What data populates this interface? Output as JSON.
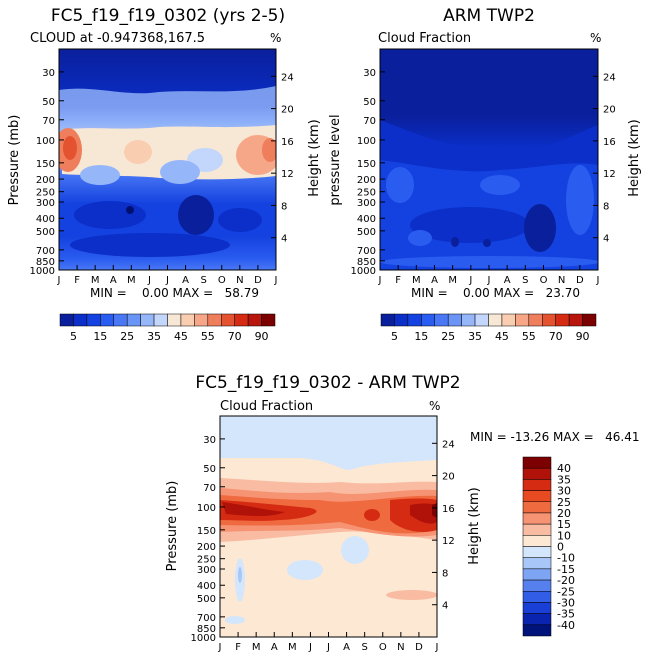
{
  "chart_data": [
    {
      "type": "heatmap",
      "title": "FC5_f19_f19_0302 (yrs 2-5)",
      "subtitle": "CLOUD at -0.947368,167.5",
      "unit": "%",
      "ylabel_left": "Pressure (mb)",
      "ylabel_right": "Height (km)",
      "stats": "MIN =    0.00 MAX =   58.79",
      "min": 0.0,
      "max": 58.79,
      "field": "model"
    },
    {
      "type": "heatmap",
      "title": "ARM TWP2",
      "subtitle": "Cloud Fraction",
      "unit": "%",
      "ylabel_left": "pressure  level",
      "ylabel_right": "Height (km)",
      "stats": "MIN =    0.00 MAX =   23.70",
      "min": 0.0,
      "max": 23.7,
      "field": "obs"
    },
    {
      "type": "heatmap",
      "title": "FC5_f19_f19_0302 - ARM TWP2",
      "subtitle": "Cloud Fraction",
      "unit": "%",
      "ylabel_left": "Pressure (mb)",
      "ylabel_right": "Height (km)",
      "stats": "MIN = -13.26 MAX =   46.41",
      "min": -13.26,
      "max": 46.41,
      "field": "diff"
    }
  ],
  "months": [
    "J",
    "F",
    "M",
    "A",
    "M",
    "J",
    "J",
    "A",
    "S",
    "O",
    "N",
    "D",
    "J"
  ],
  "pressure_ticks": [
    30,
    50,
    70,
    100,
    150,
    200,
    250,
    300,
    400,
    500,
    700,
    850,
    1000
  ],
  "pressure_range": [
    20,
    1000
  ],
  "height_ticks": [
    24,
    20,
    16,
    12,
    8,
    4
  ],
  "colorbar_abs": {
    "labels": [
      "5",
      "15",
      "25",
      "35",
      "45",
      "55",
      "70",
      "90"
    ],
    "colors": [
      "#0a1f9c",
      "#0b2fc8",
      "#1442e0",
      "#2a5cf0",
      "#4a78f5",
      "#6b94f7",
      "#96b6fa",
      "#c3d6fc",
      "#f7e8d6",
      "#f9cdb0",
      "#f6a787",
      "#ef7e5c",
      "#e4532f",
      "#d52b12",
      "#b8150c",
      "#7d0000"
    ]
  },
  "colorbar_diff": {
    "labels": [
      "40",
      "35",
      "30",
      "25",
      "20",
      "15",
      "10",
      "0",
      "-10",
      "-15",
      "-20",
      "-25",
      "-30",
      "-35",
      "-40"
    ],
    "colors": [
      "#7d0000",
      "#b01108",
      "#d52b12",
      "#e84a22",
      "#f06a3f",
      "#f69373",
      "#f9bca2",
      "#fde8d4",
      "#d4e6fb",
      "#a9c6f8",
      "#7ea4f4",
      "#5680ee",
      "#325de6",
      "#1a3fd6",
      "#0b24b0",
      "#00137a"
    ]
  }
}
